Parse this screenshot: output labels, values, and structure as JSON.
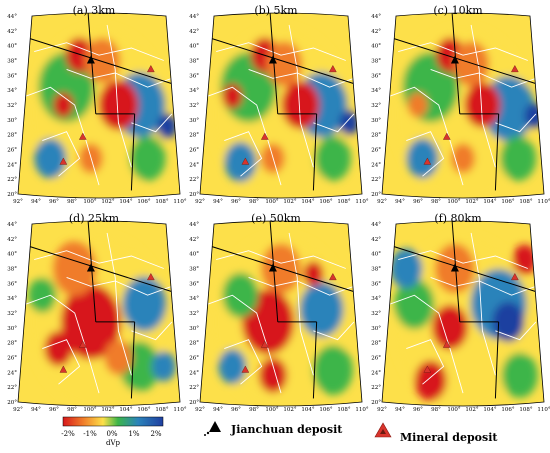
{
  "panels": [
    {
      "id": "a",
      "title": "(a) 3km"
    },
    {
      "id": "b",
      "title": "(b) 5km"
    },
    {
      "id": "c",
      "title": "(c) 10km"
    },
    {
      "id": "d",
      "title": "(d) 25km"
    },
    {
      "id": "e",
      "title": "(e) 50km"
    },
    {
      "id": "f",
      "title": "(f) 80km"
    }
  ],
  "lat_labels": [
    "44°",
    "42°",
    "40°",
    "38°",
    "36°",
    "34°",
    "32°",
    "30°",
    "28°",
    "26°",
    "24°",
    "22°",
    "20°"
  ],
  "lon_labels": [
    "92°",
    "94°",
    "96°",
    "98°",
    "100°",
    "102°",
    "104°",
    "106°",
    "108°",
    "110°"
  ],
  "legend": {
    "colorbar_ticks": [
      "-2%",
      "-1%",
      "0%",
      "1%",
      "2%"
    ],
    "colorbar_label": "dVp",
    "colors": [
      "#d7191c",
      "#f07c2a",
      "#fde04a",
      "#3cb54a",
      "#2b83ba",
      "#1f3fa0"
    ],
    "jianchuan_label": "Jianchuan deposit",
    "mineral_label": "Mineral deposit",
    "mineral_color": "#d8342c"
  }
}
